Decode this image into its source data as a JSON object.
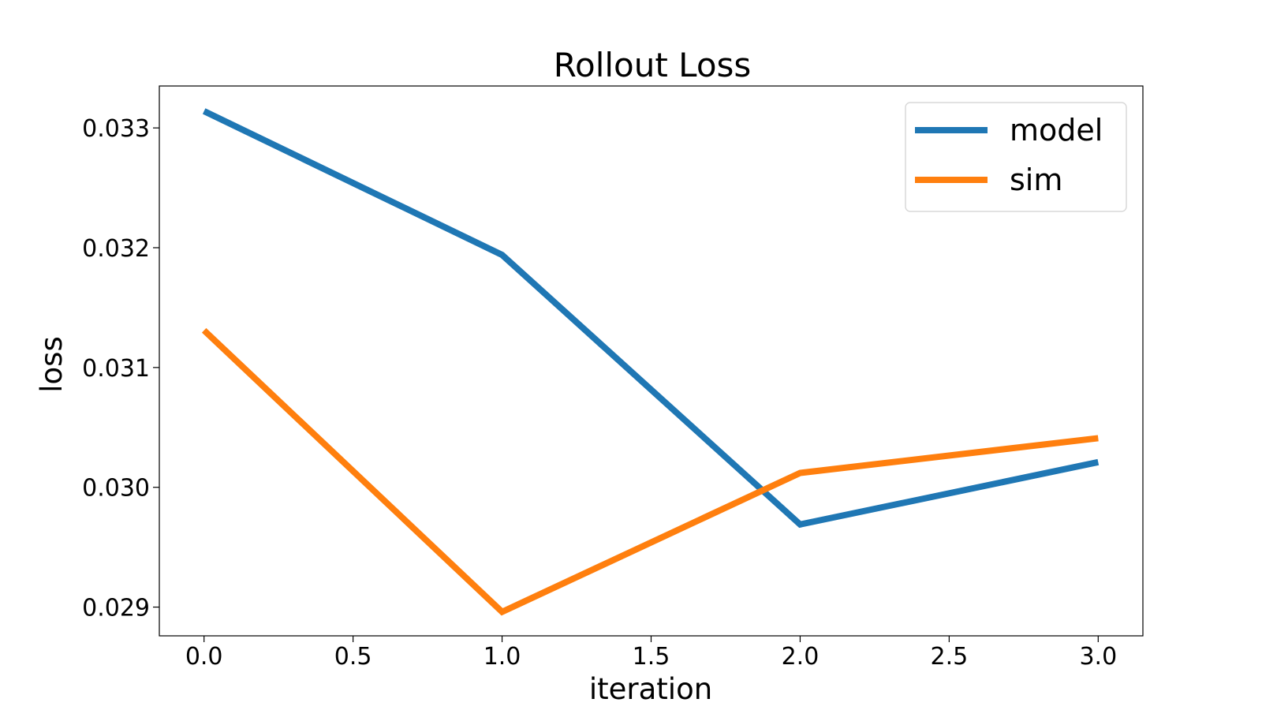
{
  "chart_data": {
    "type": "line",
    "title": "Rollout Loss",
    "xlabel": "iteration",
    "ylabel": "loss",
    "x": [
      0,
      1,
      2,
      3
    ],
    "xlim": [
      -0.15,
      3.15
    ],
    "ylim": [
      0.02876,
      0.03335
    ],
    "xticks": [
      0.0,
      0.5,
      1.0,
      1.5,
      2.0,
      2.5,
      3.0
    ],
    "xtick_labels": [
      "0.0",
      "0.5",
      "1.0",
      "1.5",
      "2.0",
      "2.5",
      "3.0"
    ],
    "yticks": [
      0.029,
      0.03,
      0.031,
      0.032,
      0.033
    ],
    "ytick_labels": [
      "0.029",
      "0.030",
      "0.031",
      "0.032",
      "0.033"
    ],
    "grid": false,
    "legend_position": "upper right",
    "series": [
      {
        "name": "model",
        "color": "#1f77b4",
        "values": [
          0.03314,
          0.03194,
          0.02969,
          0.03021
        ]
      },
      {
        "name": "sim",
        "color": "#ff7f0e",
        "values": [
          0.03131,
          0.02896,
          0.03012,
          0.03041
        ]
      }
    ]
  }
}
